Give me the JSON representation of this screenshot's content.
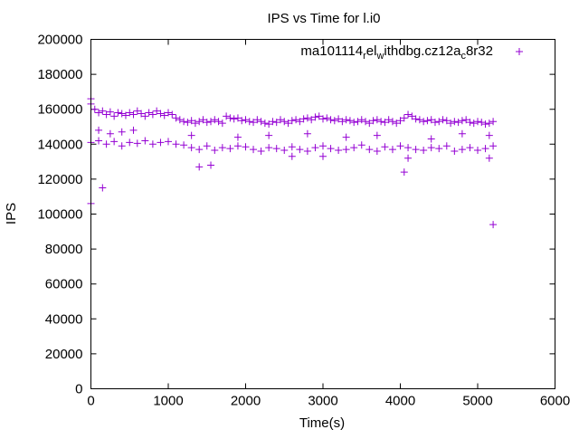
{
  "chart_data": {
    "type": "scatter",
    "title": "IPS vs Time for l.i0",
    "xlabel": "Time(s)",
    "ylabel": "IPS",
    "xlim": [
      0,
      6000
    ],
    "ylim": [
      0,
      200000
    ],
    "xticks": [
      "0",
      "1000",
      "2000",
      "3000",
      "4000",
      "5000",
      "6000"
    ],
    "yticks": [
      "0",
      "20000",
      "40000",
      "60000",
      "80000",
      "100000",
      "120000",
      "140000",
      "160000",
      "180000",
      "200000"
    ],
    "grid": false,
    "legend_position": "top-right",
    "legend": {
      "parts": [
        "ma101114",
        "r",
        "el",
        "w",
        "ithdbg.cz12a",
        "c",
        "8r32"
      ],
      "full": "ma101114_rel_withdbg.cz12a_c8r32"
    },
    "series": [
      {
        "name": "ma101114_rel_withdbg.cz12a_c8r32",
        "color": "#9400d3",
        "marker": "plus",
        "upper_band": {
          "x_start": 0,
          "x_step": 50,
          "y": [
            163000,
            160000,
            158000,
            159000,
            157000,
            158500,
            156000,
            158000,
            157500,
            156500,
            158000,
            157000,
            159000,
            157500,
            156000,
            158000,
            157000,
            159000,
            157500,
            156500,
            158000,
            157000,
            155000,
            154000,
            153000,
            152500,
            153500,
            152000,
            153000,
            154000,
            152500,
            153000,
            154000,
            153000,
            152000,
            156000,
            155000,
            154500,
            155000,
            153500,
            154000,
            153000,
            152500,
            154000,
            153000,
            152000,
            151500,
            153000,
            152500,
            154000,
            153000,
            152000,
            153500,
            154000,
            153000,
            154500,
            155000,
            154000,
            155500,
            156000,
            154500,
            155000,
            154000,
            153500,
            154500,
            153000,
            154000,
            153500,
            152500,
            153000,
            154000,
            153000,
            152000,
            153500,
            154000,
            153000,
            152500,
            154000,
            153000,
            152000,
            153500,
            155000,
            157000,
            156000,
            154500,
            154000,
            153000,
            153500,
            154000,
            152500,
            153000,
            154000,
            153500,
            152000,
            153000,
            152500,
            153500,
            154000,
            152500,
            152000,
            153000,
            152500,
            151500,
            152000,
            153000
          ]
        },
        "lower_band": {
          "x_start": 0,
          "x_step": 100,
          "y": [
            141000,
            142000,
            140000,
            141500,
            139000,
            141000,
            140500,
            142000,
            140000,
            141000,
            141500,
            140000,
            139500,
            138000,
            137000,
            139000,
            136500,
            138000,
            137500,
            139000,
            138500,
            137000,
            136000,
            138000,
            137500,
            136500,
            138500,
            137000,
            136000,
            138000,
            139000,
            137500,
            136500,
            137000,
            138000,
            139500,
            137000,
            136000,
            138500,
            137000,
            139000,
            138000,
            137000,
            136500,
            138000,
            137500,
            139000,
            136000,
            137000,
            138000,
            136500,
            137500,
            139000
          ]
        },
        "other_points": [
          [
            0,
            166000
          ],
          [
            0,
            106000
          ],
          [
            150,
            115000
          ],
          [
            1400,
            127000
          ],
          [
            1550,
            128000
          ],
          [
            4050,
            124000
          ],
          [
            5200,
            94000
          ],
          [
            100,
            148000
          ],
          [
            250,
            146000
          ],
          [
            400,
            147000
          ],
          [
            550,
            148000
          ],
          [
            1300,
            145000
          ],
          [
            1900,
            144000
          ],
          [
            2300,
            145000
          ],
          [
            2800,
            146000
          ],
          [
            3300,
            144000
          ],
          [
            3700,
            145000
          ],
          [
            4400,
            143000
          ],
          [
            4800,
            146000
          ],
          [
            5150,
            145000
          ],
          [
            5150,
            132000
          ],
          [
            4100,
            132000
          ],
          [
            2600,
            133000
          ],
          [
            3000,
            133000
          ]
        ]
      }
    ]
  }
}
